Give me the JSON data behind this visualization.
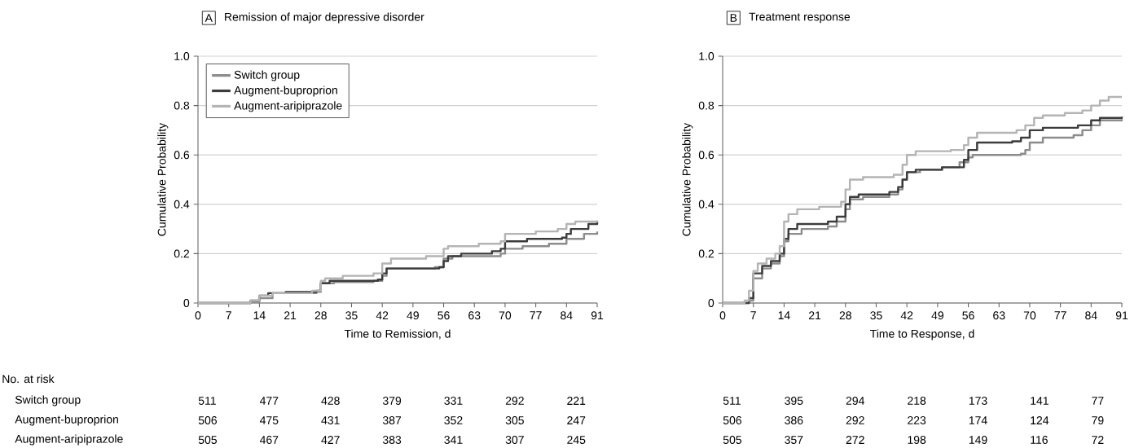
{
  "chart_data": [
    {
      "type": "step",
      "title": "Remission of major depressive disorder",
      "xlabel": "Time to Remission, d",
      "ylabel": "Cumulative Probability",
      "xlim": [
        0,
        91
      ],
      "xticks": [
        0,
        7,
        14,
        21,
        28,
        35,
        42,
        49,
        56,
        63,
        70,
        77,
        84,
        91
      ],
      "ylim": [
        0,
        1
      ],
      "yticks": [
        0,
        0.2,
        0.4,
        0.6,
        0.8,
        {
          "value": 1,
          "label": "1.0"
        }
      ],
      "grid": "y",
      "legend": "top left",
      "series": [
        {
          "name": "Switch group",
          "color": "#8c8c8c",
          "x": [
            0,
            12,
            14,
            17,
            27,
            28,
            31,
            40,
            42,
            43,
            54,
            56,
            58,
            69,
            70,
            74,
            80,
            84,
            88,
            91
          ],
          "values": [
            0,
            0.005,
            0.02,
            0.04,
            0.045,
            0.08,
            0.085,
            0.09,
            0.11,
            0.14,
            0.145,
            0.18,
            0.19,
            0.2,
            0.22,
            0.23,
            0.24,
            0.26,
            0.28,
            0.29
          ]
        },
        {
          "name": "Augment-buproprion",
          "color": "#3c3c3c",
          "x": [
            0,
            12,
            14,
            16,
            20,
            27,
            28,
            30,
            41,
            42,
            43,
            55,
            56,
            57,
            60,
            67,
            69,
            70,
            75,
            83,
            84,
            85,
            89,
            91
          ],
          "values": [
            0,
            0.01,
            0.03,
            0.04,
            0.045,
            0.05,
            0.08,
            0.09,
            0.095,
            0.12,
            0.14,
            0.145,
            0.17,
            0.19,
            0.2,
            0.21,
            0.22,
            0.25,
            0.26,
            0.265,
            0.28,
            0.3,
            0.32,
            0.33
          ]
        },
        {
          "name": "Augment-aripiprazole",
          "color": "#b4b4b4",
          "x": [
            0,
            12,
            14,
            17,
            26,
            28,
            29,
            33,
            40,
            42,
            44,
            52,
            56,
            57,
            64,
            69,
            70,
            77,
            82,
            84,
            86,
            91
          ],
          "values": [
            0,
            0.01,
            0.03,
            0.04,
            0.05,
            0.09,
            0.1,
            0.11,
            0.12,
            0.16,
            0.18,
            0.19,
            0.22,
            0.23,
            0.24,
            0.25,
            0.28,
            0.29,
            0.3,
            0.32,
            0.33,
            0.335
          ]
        }
      ],
      "annotations": [
        "A",
        "No. at risk",
        "Switch group",
        "Augment-buproprion",
        "Augment-aripiprazole",
        "511",
        "477",
        "428",
        "379",
        "331",
        "292",
        "221",
        "506",
        "475",
        "431",
        "387",
        "352",
        "305",
        "247",
        "505",
        "467",
        "427",
        "383",
        "341",
        "307",
        "245"
      ]
    },
    {
      "type": "step",
      "title": "Treatment response",
      "xlabel": "Time to Response, d",
      "ylabel": "Cumulative Probability",
      "xlim": [
        0,
        91
      ],
      "xticks": [
        0,
        7,
        14,
        21,
        28,
        35,
        42,
        49,
        56,
        63,
        70,
        77,
        84,
        91
      ],
      "ylim": [
        0,
        1
      ],
      "yticks": [
        0,
        0.2,
        0.4,
        0.6,
        0.8,
        {
          "value": 1,
          "label": "1.0"
        }
      ],
      "grid": "y",
      "series": [
        {
          "color": "#8c8c8c",
          "x": [
            0,
            6,
            7,
            9,
            11,
            13,
            14,
            15,
            18,
            24,
            26,
            28,
            29,
            32,
            38,
            40,
            41,
            42,
            45,
            50,
            54,
            56,
            57,
            68,
            69,
            70,
            73,
            80,
            82,
            84,
            86,
            91
          ],
          "values": [
            0,
            0.01,
            0.1,
            0.14,
            0.16,
            0.19,
            0.25,
            0.28,
            0.3,
            0.31,
            0.33,
            0.38,
            0.42,
            0.43,
            0.44,
            0.46,
            0.5,
            0.53,
            0.54,
            0.55,
            0.57,
            0.59,
            0.6,
            0.605,
            0.62,
            0.65,
            0.67,
            0.68,
            0.7,
            0.72,
            0.74,
            0.745
          ]
        },
        {
          "color": "#3c3c3c",
          "x": [
            0,
            6,
            7,
            9,
            11,
            13,
            14,
            15,
            17,
            24,
            26,
            28,
            29,
            31,
            38,
            40,
            41,
            42,
            44,
            50,
            55,
            56,
            58,
            66,
            68,
            70,
            73,
            81,
            84,
            86,
            91
          ],
          "values": [
            0,
            0.02,
            0.12,
            0.15,
            0.17,
            0.2,
            0.26,
            0.3,
            0.32,
            0.33,
            0.35,
            0.4,
            0.43,
            0.44,
            0.45,
            0.47,
            0.5,
            0.53,
            0.54,
            0.55,
            0.58,
            0.62,
            0.65,
            0.655,
            0.67,
            0.7,
            0.71,
            0.72,
            0.74,
            0.75,
            0.755
          ]
        },
        {
          "color": "#b4b4b4",
          "x": [
            0,
            5,
            6,
            7,
            8,
            10,
            12,
            13,
            14,
            15,
            17,
            22,
            27,
            28,
            29,
            32,
            39,
            41,
            42,
            44,
            52,
            55,
            56,
            58,
            67,
            69,
            71,
            73,
            78,
            82,
            84,
            86,
            88,
            91
          ],
          "values": [
            0,
            0.01,
            0.05,
            0.13,
            0.16,
            0.18,
            0.2,
            0.23,
            0.33,
            0.36,
            0.38,
            0.39,
            0.41,
            0.46,
            0.5,
            0.51,
            0.52,
            0.56,
            0.6,
            0.615,
            0.62,
            0.64,
            0.67,
            0.69,
            0.7,
            0.72,
            0.75,
            0.76,
            0.77,
            0.78,
            0.8,
            0.82,
            0.835,
            0.835
          ]
        }
      ],
      "annotations": [
        "B",
        "511",
        "395",
        "294",
        "218",
        "173",
        "141",
        "77",
        "506",
        "386",
        "292",
        "223",
        "174",
        "124",
        "79",
        "505",
        "357",
        "272",
        "198",
        "149",
        "116",
        "72"
      ]
    }
  ]
}
